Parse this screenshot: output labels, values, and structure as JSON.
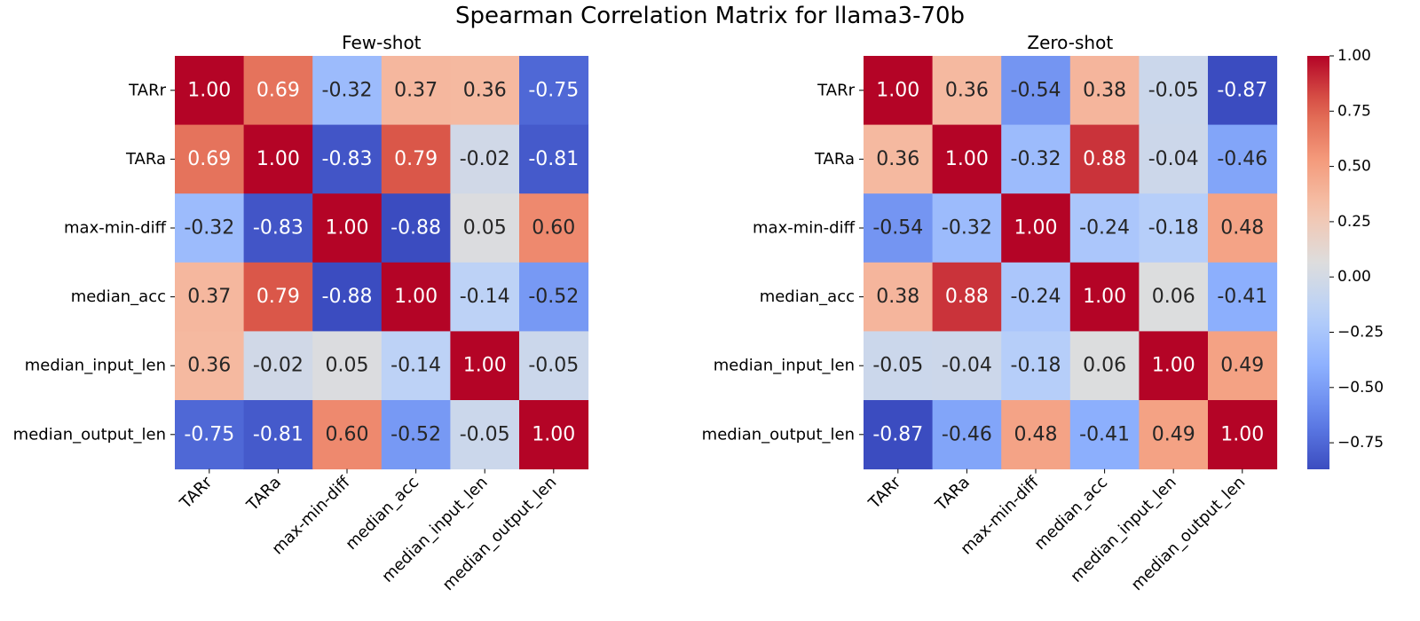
{
  "chart_data": {
    "title": "Spearman Correlation Matrix for llama3-70b",
    "type": "heatmap",
    "colormap": "coolwarm",
    "value_format": "0.00",
    "variables": [
      "TARr",
      "TARa",
      "max-min-diff",
      "median_acc",
      "median_input_len",
      "median_output_len"
    ],
    "panels": [
      {
        "title": "Few-shot",
        "matrix": [
          [
            1.0,
            0.69,
            -0.32,
            0.37,
            0.36,
            -0.75
          ],
          [
            0.69,
            1.0,
            -0.83,
            0.79,
            -0.02,
            -0.81
          ],
          [
            -0.32,
            -0.83,
            1.0,
            -0.88,
            0.05,
            0.6
          ],
          [
            0.37,
            0.79,
            -0.88,
            1.0,
            -0.14,
            -0.52
          ],
          [
            0.36,
            -0.02,
            0.05,
            -0.14,
            1.0,
            -0.05
          ],
          [
            -0.75,
            -0.81,
            0.6,
            -0.52,
            -0.05,
            1.0
          ]
        ]
      },
      {
        "title": "Zero-shot",
        "matrix": [
          [
            1.0,
            0.36,
            -0.54,
            0.38,
            -0.05,
            -0.87
          ],
          [
            0.36,
            1.0,
            -0.32,
            0.88,
            -0.04,
            -0.46
          ],
          [
            -0.54,
            -0.32,
            1.0,
            -0.24,
            -0.18,
            0.48
          ],
          [
            0.38,
            0.88,
            -0.24,
            1.0,
            0.06,
            -0.41
          ],
          [
            -0.05,
            -0.04,
            -0.18,
            0.06,
            1.0,
            0.49
          ],
          [
            -0.87,
            -0.46,
            0.48,
            -0.41,
            0.49,
            1.0
          ]
        ]
      }
    ],
    "colorbar": {
      "range": [
        -0.87,
        1.0
      ],
      "ticks": [
        1.0,
        0.75,
        0.5,
        0.25,
        0.0,
        -0.25,
        -0.5,
        -0.75
      ],
      "tick_labels": [
        "1.00",
        "0.75",
        "0.50",
        "0.25",
        "0.00",
        "−0.25",
        "−0.50",
        "−0.75"
      ]
    }
  }
}
